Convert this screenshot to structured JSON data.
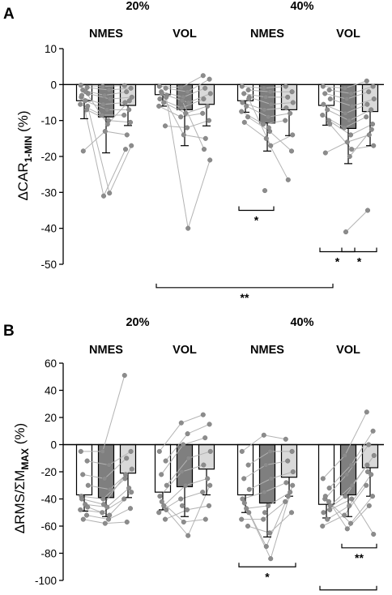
{
  "chart_data": [
    {
      "panel": "A",
      "type": "bar",
      "ylabel": "ΔCAR",
      "ylabel_sub": "1-MIN",
      "ylabel_unit": " (%)",
      "ylim": [
        -50,
        10
      ],
      "yticks": [
        10,
        0,
        -10,
        -20,
        -30,
        -40,
        -50
      ],
      "intensity_labels": [
        "20%",
        "40%"
      ],
      "condition_labels": [
        "NMES",
        "VOL",
        "NMES",
        "VOL"
      ],
      "bar_fills": [
        "#ffffff",
        "#7f7f7f",
        "#d9d9d9"
      ],
      "groups": [
        {
          "bars": [
            {
              "value": -4.5,
              "err": 5.0,
              "dots": [
                -0.2,
                -0.8,
                -1.5,
                -2.5,
                -3.5,
                -4.5,
                -5.5,
                -7,
                -18.5,
                -6,
                -3,
                -2
              ]
            },
            {
              "value": -9.0,
              "err": 10.0,
              "dots": [
                -0.5,
                -1.5,
                -3,
                -4,
                -5.5,
                -7,
                -8.5,
                -10,
                -13,
                -30.2,
                -31,
                -11
              ]
            },
            {
              "value": -5.8,
              "err": 5.6,
              "dots": [
                -0.3,
                -1,
                -2,
                -3.5,
                -5,
                -7,
                -8.5,
                -10.5,
                -14,
                -17,
                -18,
                -4.5
              ]
            }
          ]
        },
        {
          "bars": [
            {
              "value": -2.8,
              "err": 3.2,
              "dots": [
                -0.5,
                -1,
                -2,
                -3,
                -4,
                -5,
                -6,
                -11.5,
                -2.5,
                -3.5
              ]
            },
            {
              "value": -7.0,
              "err": 10.0,
              "dots": [
                -0.8,
                -2,
                -3.5,
                -5,
                -6.5,
                -8,
                -9,
                -12,
                -14,
                -40,
                -4.5
              ]
            },
            {
              "value": -5.5,
              "err": 6.0,
              "dots": [
                2.5,
                1.5,
                -1,
                -2.5,
                -4,
                -6,
                -8,
                -10,
                -15,
                -21,
                -18
              ]
            }
          ]
        },
        {
          "bars": [
            {
              "value": -4.5,
              "err": 3.2,
              "dots": [
                -0.5,
                -1.5,
                -2.5,
                -3.5,
                -5,
                -6,
                -7.5,
                -9,
                -10.5,
                -4
              ]
            },
            {
              "value": -10.7,
              "err": 7.8,
              "dots": [
                -1,
                -2,
                -3.5,
                -5.5,
                -7,
                -9,
                -11,
                -13,
                -15,
                -17,
                -29.5,
                -12
              ]
            },
            {
              "value": -7.0,
              "err": 7.2,
              "dots": [
                -0.5,
                -2,
                -3.5,
                -5,
                -6.5,
                -8,
                -10,
                -18.5,
                -26.5,
                -14
              ]
            }
          ]
        },
        {
          "bars": [
            {
              "value": -5.8,
              "err": 5.5,
              "dots": [
                -0.5,
                -1.5,
                -2.5,
                -4,
                -5.5,
                -7,
                -8.5,
                -10,
                -19,
                -11
              ]
            },
            {
              "value": -12.2,
              "err": 9.8,
              "dots": [
                -1,
                -2.5,
                -4,
                -6,
                -8,
                -10,
                -12,
                -14,
                -16,
                -18,
                -41,
                -20
              ]
            },
            {
              "value": -7.5,
              "err": 9.5,
              "dots": [
                1,
                -0.5,
                -2,
                -4,
                -5.5,
                -7,
                -9,
                -11,
                -14,
                -17,
                -35,
                -12.5
              ]
            }
          ]
        }
      ],
      "significance": [
        {
          "x_from": [
            2,
            0
          ],
          "x_to": [
            2,
            1
          ],
          "y": -35,
          "label": "*"
        },
        {
          "x_from": [
            3,
            0
          ],
          "x_to": [
            3,
            1
          ],
          "y": -46.5,
          "label": "*"
        },
        {
          "x_from": [
            3,
            1
          ],
          "x_to": [
            3,
            2
          ],
          "y": -46.5,
          "label": "*"
        },
        {
          "x_from": [
            1,
            0
          ],
          "x_to": [
            3,
            0
          ],
          "y": -56.5,
          "label": "**"
        }
      ]
    },
    {
      "panel": "B",
      "type": "bar",
      "ylabel": "ΔRMS/ΣM",
      "ylabel_sub": "MAX",
      "ylabel_unit": " (%)",
      "ylim": [
        -100,
        60
      ],
      "yticks": [
        60,
        40,
        20,
        0,
        -20,
        -40,
        -60,
        -80,
        -100
      ],
      "intensity_labels": [
        "20%",
        "40%"
      ],
      "condition_labels": [
        "NMES",
        "VOL",
        "NMES",
        "VOL"
      ],
      "bar_fills": [
        "#ffffff",
        "#7f7f7f",
        "#d9d9d9"
      ],
      "groups": [
        {
          "bars": [
            {
              "value": -37,
              "err": 12,
              "dots": [
                -5,
                -12,
                -22,
                -30,
                -38,
                -44,
                -48,
                -52,
                -55,
                -46,
                -40
              ]
            },
            {
              "value": -39,
              "err": 14,
              "dots": [
                -5,
                -15,
                -25,
                -33,
                -40,
                -46,
                -50,
                -55,
                -58,
                -52,
                -44
              ]
            },
            {
              "value": -21,
              "err": 18,
              "dots": [
                51,
                -5,
                -10,
                -18,
                -25,
                -32,
                -40,
                -47,
                -57,
                -35,
                -22
              ]
            }
          ]
        },
        {
          "bars": [
            {
              "value": -35,
              "err": 13,
              "dots": [
                -5,
                -12,
                -22,
                -30,
                -38,
                -45,
                -50,
                -55,
                -42,
                -48
              ]
            },
            {
              "value": -31,
              "err": 22,
              "dots": [
                16,
                8,
                0,
                -10,
                -20,
                -30,
                -40,
                -48,
                -57,
                -67,
                -45
              ]
            },
            {
              "value": -18,
              "err": 19,
              "dots": [
                22,
                15,
                5,
                -5,
                -15,
                -25,
                -35,
                -45,
                -55,
                -30
              ]
            }
          ]
        },
        {
          "bars": [
            {
              "value": -37,
              "err": 13,
              "dots": [
                -5,
                -15,
                -25,
                -33,
                -40,
                -47,
                -55,
                -60,
                -43,
                -50
              ]
            },
            {
              "value": -43,
              "err": 25,
              "dots": [
                7,
                -5,
                -15,
                -25,
                -35,
                -45,
                -55,
                -65,
                -75,
                -84,
                -50
              ]
            },
            {
              "value": -24,
              "err": 14,
              "dots": [
                4,
                -5,
                -12,
                -20,
                -28,
                -35,
                -42,
                -50,
                -38,
                -30
              ]
            }
          ]
        },
        {
          "bars": [
            {
              "value": -44,
              "err": 10,
              "dots": [
                -25,
                -32,
                -40,
                -45,
                -50,
                -55,
                -60,
                -42,
                -38,
                -48
              ]
            },
            {
              "value": -37,
              "err": 16,
              "dots": [
                -8,
                -15,
                -22,
                -30,
                -38,
                -45,
                -52,
                -58,
                -62,
                -40
              ]
            },
            {
              "value": -17,
              "err": 21,
              "dots": [
                24,
                10,
                0,
                -8,
                -15,
                -22,
                -30,
                -38,
                -45,
                -66,
                -20
              ]
            }
          ]
        }
      ],
      "significance": [
        {
          "x_from": [
            2,
            0
          ],
          "x_to": [
            2,
            2
          ],
          "y": -90,
          "label": "*"
        },
        {
          "x_from": [
            3,
            1
          ],
          "x_to": [
            3,
            2
          ],
          "y": -76,
          "label": "**"
        },
        {
          "x_from": [
            3,
            0
          ],
          "x_to": [
            3,
            2
          ],
          "y": -107,
          "label": "*"
        }
      ]
    }
  ]
}
